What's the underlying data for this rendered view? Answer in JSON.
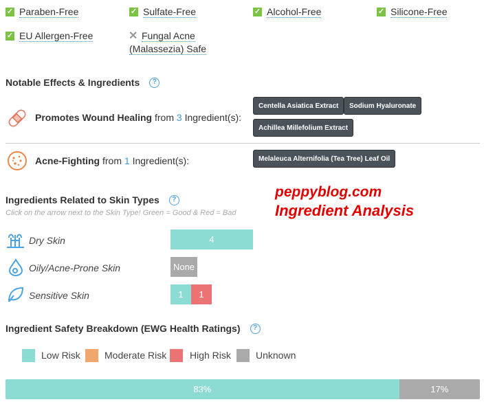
{
  "badges": [
    {
      "label": "Paraben-Free",
      "status": "check"
    },
    {
      "label": "Sulfate-Free",
      "status": "check"
    },
    {
      "label": "Alcohol-Free",
      "status": "check"
    },
    {
      "label": "Silicone-Free",
      "status": "check"
    },
    {
      "label": "EU Allergen-Free",
      "status": "check"
    },
    {
      "label_line1": "Fungal Acne",
      "label_line2": "(Malassezia) Safe",
      "status": "cross"
    }
  ],
  "notable": {
    "title": "Notable Effects & Ingredients",
    "effects": [
      {
        "name": "Promotes Wound Healing",
        "from": "from",
        "count": "3",
        "suffix": "Ingredient(s):",
        "icon": "bandage-icon",
        "ingredients": [
          "Centella Asiatica Extract",
          "Sodium Hyaluronate",
          "Achillea Millefolium Extract"
        ]
      },
      {
        "name": "Acne-Fighting",
        "from": "from",
        "count": "1",
        "suffix": "Ingredient(s):",
        "icon": "acne-icon",
        "ingredients": [
          "Melaleuca Alternifolia (Tea Tree) Leaf Oil"
        ]
      }
    ]
  },
  "skin": {
    "title": "Ingredients Related to Skin Types",
    "subtitle": "Click on the arrow next to the Skin Type! Green = Good & Red = Bad",
    "types": [
      {
        "name": "Dry Skin",
        "good": "4"
      },
      {
        "name": "Oily/Acne-Prone Skin",
        "none": "None"
      },
      {
        "name": "Sensitive Skin",
        "good": "1",
        "bad": "1"
      }
    ]
  },
  "watermark": {
    "line1": "peppyblog.com",
    "line2": "Ingredient Analysis"
  },
  "safety": {
    "title": "Ingredient Safety Breakdown (EWG Health Ratings)",
    "legend": [
      {
        "label": "Low Risk",
        "color": "#8ddcd3"
      },
      {
        "label": "Moderate Risk",
        "color": "#f0a66c"
      },
      {
        "label": "High Risk",
        "color": "#ec7475"
      },
      {
        "label": "Unknown",
        "color": "#aaaaaa"
      }
    ],
    "bar": [
      {
        "label": "83%",
        "value": 83,
        "color": "#8ddcd3"
      },
      {
        "label": "17%",
        "value": 17,
        "color": "#aaaaaa"
      }
    ]
  }
}
